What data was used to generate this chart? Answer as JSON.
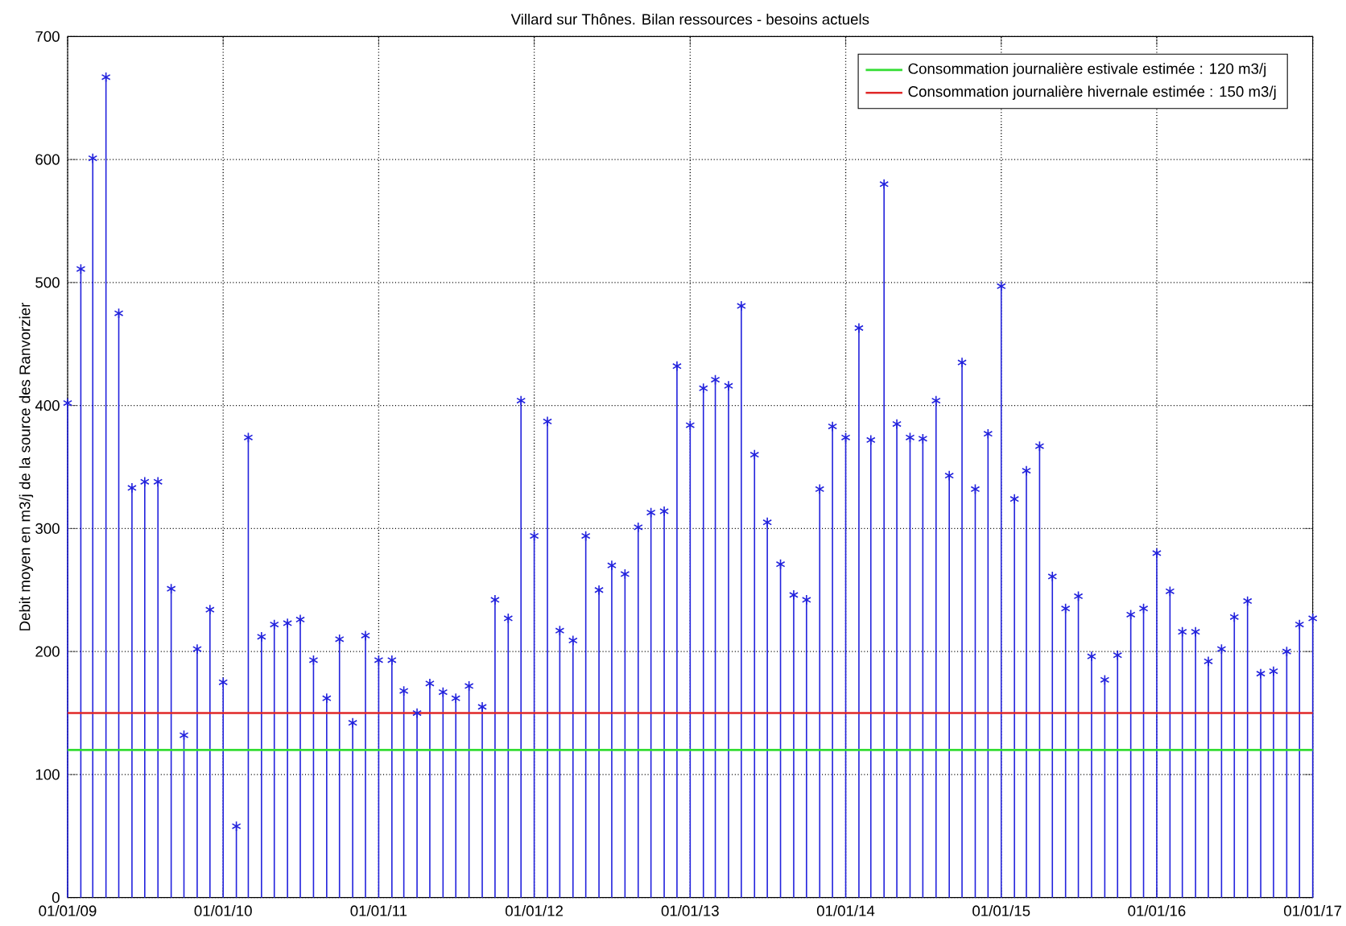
{
  "chart_data": {
    "type": "lollipop",
    "title": "Villard sur Thônes. Bilan ressources - besoins actuels",
    "ylabel": "Debit moyen en m3/j de la source des Ranvorzier",
    "x": [
      "2009-01",
      "2009-02",
      "2009-03",
      "2009-04",
      "2009-05",
      "2009-06",
      "2009-07",
      "2009-08",
      "2009-09",
      "2009-10",
      "2009-11",
      "2009-12",
      "2010-01",
      "2010-02",
      "2010-03",
      "2010-04",
      "2010-05",
      "2010-06",
      "2010-07",
      "2010-08",
      "2010-09",
      "2010-10",
      "2010-11",
      "2010-12",
      "2011-01",
      "2011-02",
      "2011-03",
      "2011-04",
      "2011-05",
      "2011-06",
      "2011-07",
      "2011-08",
      "2011-09",
      "2011-10",
      "2011-11",
      "2011-12",
      "2012-01",
      "2012-02",
      "2012-03",
      "2012-04",
      "2012-05",
      "2012-06",
      "2012-07",
      "2012-08",
      "2012-09",
      "2012-10",
      "2012-11",
      "2012-12",
      "2013-01",
      "2013-02",
      "2013-03",
      "2013-04",
      "2013-05",
      "2013-06",
      "2013-07",
      "2013-08",
      "2013-09",
      "2013-10",
      "2013-11",
      "2013-12",
      "2014-01",
      "2014-02",
      "2014-03",
      "2014-04",
      "2014-05",
      "2014-06",
      "2014-07",
      "2014-08",
      "2014-09",
      "2014-10",
      "2014-11",
      "2014-12",
      "2015-01",
      "2015-02",
      "2015-03",
      "2015-04",
      "2015-05",
      "2015-06",
      "2015-07",
      "2015-08",
      "2015-09",
      "2015-10",
      "2015-11",
      "2015-12",
      "2016-01",
      "2016-02",
      "2016-03",
      "2016-04",
      "2016-05",
      "2016-06",
      "2016-07",
      "2016-08",
      "2016-09",
      "2016-10",
      "2016-11",
      "2016-12",
      "2017-01"
    ],
    "values": [
      402,
      511,
      601,
      667,
      475,
      333,
      338,
      338,
      251,
      132,
      202,
      234,
      175,
      58,
      374,
      212,
      222,
      223,
      226,
      193,
      162,
      210,
      142,
      213,
      193,
      193,
      168,
      150,
      174,
      167,
      162,
      172,
      155,
      242,
      227,
      404,
      294,
      387,
      217,
      209,
      294,
      250,
      270,
      263,
      301,
      313,
      314,
      432,
      384,
      414,
      421,
      416,
      481,
      360,
      305,
      271,
      246,
      242,
      332,
      383,
      374,
      463,
      372,
      580,
      385,
      374,
      373,
      404,
      343,
      435,
      332,
      377,
      497,
      324,
      347,
      367,
      261,
      235,
      245,
      196,
      177,
      197,
      230,
      235,
      280,
      249,
      216,
      216,
      192,
      202,
      228,
      241,
      182,
      184,
      200,
      222,
      227
    ],
    "color": "#2222dd",
    "marker": "cross",
    "xlim": [
      "2009-01-01",
      "2017-01-01"
    ],
    "xticks": [
      {
        "value": "2009-01-01",
        "label": "01/01/09"
      },
      {
        "value": "2010-01-01",
        "label": "01/01/10"
      },
      {
        "value": "2011-01-01",
        "label": "01/01/11"
      },
      {
        "value": "2012-01-01",
        "label": "01/01/12"
      },
      {
        "value": "2013-01-01",
        "label": "01/01/13"
      },
      {
        "value": "2014-01-01",
        "label": "01/01/14"
      },
      {
        "value": "2015-01-01",
        "label": "01/01/15"
      },
      {
        "value": "2016-01-01",
        "label": "01/01/16"
      },
      {
        "value": "2017-01-01",
        "label": "01/01/17"
      }
    ],
    "ylim": [
      0,
      700
    ],
    "yticks": [
      0,
      100,
      200,
      300,
      400,
      500,
      600,
      700
    ],
    "ref_lines": [
      {
        "axis": "y",
        "value": 120,
        "label": "Consommation journalière estivale estimée : 120 m3/j",
        "color": "#33dd33"
      },
      {
        "axis": "y",
        "value": 150,
        "label": "Consommation journalière hivernale estimée : 150 m3/j",
        "color": "#e02828"
      }
    ],
    "grid": true,
    "legend": "top right"
  }
}
